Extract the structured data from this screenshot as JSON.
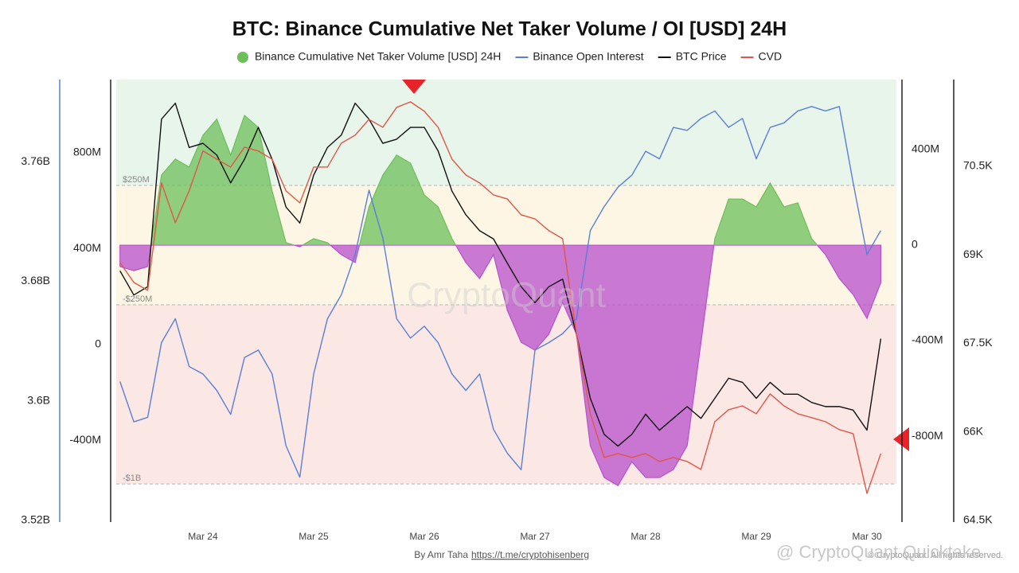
{
  "chart_data": {
    "type": "line",
    "title": "BTC: Binance Cumulative Net Taker Volume / OI [USD] 24H",
    "x": [
      23.25,
      23.375,
      23.5,
      23.625,
      23.75,
      23.875,
      24,
      24.125,
      24.25,
      24.375,
      24.5,
      24.625,
      24.75,
      24.875,
      25,
      25.125,
      25.25,
      25.375,
      25.5,
      25.625,
      25.75,
      25.875,
      26,
      26.125,
      26.25,
      26.375,
      26.5,
      26.625,
      26.75,
      26.875,
      27,
      27.125,
      27.25,
      27.375,
      27.5,
      27.625,
      27.75,
      27.875,
      28,
      28.125,
      28.25,
      28.375,
      28.5,
      28.625,
      28.75,
      28.875,
      29,
      29.125,
      29.25,
      29.375,
      29.5,
      29.625,
      29.75,
      29.875,
      30,
      30.125
    ],
    "xlim": [
      23.216,
      30.266
    ],
    "xticks": [
      {
        "value": 24,
        "label": "Mar 24"
      },
      {
        "value": 25,
        "label": "Mar 25"
      },
      {
        "value": 26,
        "label": "Mar 26"
      },
      {
        "value": 27,
        "label": "Mar 27"
      },
      {
        "value": 28,
        "label": "Mar 28"
      },
      {
        "value": 29,
        "label": "Mar 29"
      },
      {
        "value": 30,
        "label": "Mar 30"
      }
    ],
    "axes": [
      {
        "side": "left-outer",
        "color": "#5b7fd6",
        "lim": [
          3.52,
          3.815
        ],
        "ticks": [
          {
            "value": 3.52,
            "label": "3.52B"
          },
          {
            "value": 3.6,
            "label": "3.6B"
          },
          {
            "value": 3.68,
            "label": "3.68B"
          },
          {
            "value": 3.76,
            "label": "3.76B"
          }
        ]
      },
      {
        "side": "left-inner",
        "color": "#222222",
        "lim": [
          -734,
          1105
        ],
        "ticks": [
          {
            "value": -400,
            "label": "-400M"
          },
          0,
          {
            "value": 400,
            "label": "400M"
          },
          {
            "value": 800,
            "label": "800M"
          }
        ]
      },
      {
        "side": "right-inner",
        "color": "#222222",
        "lim": [
          -1153,
          693
        ],
        "ticks": [
          {
            "value": -800,
            "label": "-800M"
          },
          {
            "value": -400,
            "label": "-400M"
          },
          0,
          {
            "value": 400,
            "label": "400M"
          }
        ]
      },
      {
        "side": "right-outer",
        "color": "#222222",
        "lim": [
          64.5,
          71.97
        ],
        "ticks": [
          {
            "value": 64.5,
            "label": "64.5K"
          },
          {
            "value": 66,
            "label": "66K"
          },
          {
            "value": 67.5,
            "label": "67.5K"
          },
          {
            "value": 69,
            "label": "69K"
          },
          {
            "value": 70.5,
            "label": "70.5K"
          }
        ]
      }
    ],
    "series": [
      {
        "name": "Binance Cumulative Net Taker Volume [USD] 24H",
        "type": "area",
        "axis": 2,
        "color": "#6cbf5a",
        "negative_color": "#b84fcc",
        "values": [
          -90,
          -107,
          -90,
          293,
          360,
          327,
          460,
          527,
          377,
          543,
          493,
          227,
          10,
          -7,
          27,
          10,
          -40,
          -73,
          160,
          293,
          377,
          343,
          210,
          160,
          27,
          -73,
          -140,
          -40,
          -273,
          -407,
          -440,
          -373,
          -240,
          -373,
          -840,
          -973,
          -1007,
          -907,
          -973,
          -973,
          -940,
          -840,
          -407,
          27,
          193,
          193,
          160,
          260,
          160,
          177,
          27,
          -40,
          -140,
          -207,
          -307,
          -157
        ]
      },
      {
        "name": "Binance Open Interest",
        "type": "line",
        "axis": 0,
        "color": "#5b7fd6",
        "values": [
          3.613,
          3.586,
          3.589,
          3.639,
          3.655,
          3.623,
          3.618,
          3.607,
          3.591,
          3.629,
          3.634,
          3.618,
          3.57,
          3.549,
          3.618,
          3.655,
          3.671,
          3.698,
          3.741,
          3.709,
          3.655,
          3.642,
          3.65,
          3.639,
          3.618,
          3.607,
          3.618,
          3.581,
          3.565,
          3.554,
          3.634,
          3.639,
          3.645,
          3.655,
          3.714,
          3.73,
          3.743,
          3.751,
          3.767,
          3.762,
          3.783,
          3.781,
          3.789,
          3.794,
          3.783,
          3.789,
          3.762,
          3.783,
          3.786,
          3.794,
          3.797,
          3.794,
          3.797,
          3.746,
          3.698,
          3.714
        ]
      },
      {
        "name": "BTC Price",
        "type": "line",
        "axis": 3,
        "color": "#111111",
        "values": [
          68.73,
          68.32,
          68.46,
          71.3,
          71.57,
          70.82,
          70.89,
          70.69,
          70.22,
          70.62,
          71.16,
          70.62,
          69.81,
          69.54,
          70.35,
          70.82,
          71.03,
          71.57,
          71.3,
          70.89,
          70.96,
          71.16,
          71.16,
          70.76,
          70.08,
          69.68,
          69.41,
          69.27,
          68.86,
          68.46,
          68.19,
          68.46,
          68.59,
          67.65,
          66.57,
          65.96,
          65.76,
          65.96,
          66.3,
          66.03,
          66.23,
          66.43,
          66.23,
          66.57,
          66.91,
          66.84,
          66.57,
          66.84,
          66.64,
          66.64,
          66.5,
          66.43,
          66.43,
          66.37,
          66.03,
          67.58
        ]
      },
      {
        "name": "CVD",
        "type": "line",
        "axis": 1,
        "color": "#e0574a",
        "values": [
          342,
          259,
          226,
          674,
          508,
          641,
          807,
          773,
          740,
          823,
          807,
          773,
          641,
          591,
          740,
          740,
          840,
          873,
          939,
          906,
          989,
          1012,
          973,
          906,
          773,
          707,
          674,
          624,
          607,
          541,
          524,
          475,
          441,
          43,
          -289,
          -471,
          -455,
          -471,
          -455,
          -488,
          -471,
          -488,
          -521,
          -322,
          -272,
          -256,
          -289,
          -206,
          -256,
          -289,
          -305,
          -322,
          -355,
          -372,
          -621,
          -455
        ]
      }
    ],
    "reference_axis": 2,
    "reference_lines": [
      {
        "value": 250,
        "label": "$250M"
      },
      {
        "value": -250,
        "label": "-$250M"
      },
      {
        "value": -1000,
        "label": "-$1B"
      }
    ],
    "zone_colors": [
      "#e8f5ea",
      "#fdf6e4",
      "#fbe7e4"
    ],
    "watermark": "CryptoQuant",
    "footer": {
      "text": "By Amr Taha",
      "link": "https://t.me/cryptohisenberg"
    },
    "overlay": "@ CryptoQuant Quicktake",
    "copyright": "© CryptoQuant. All rights reserved."
  }
}
